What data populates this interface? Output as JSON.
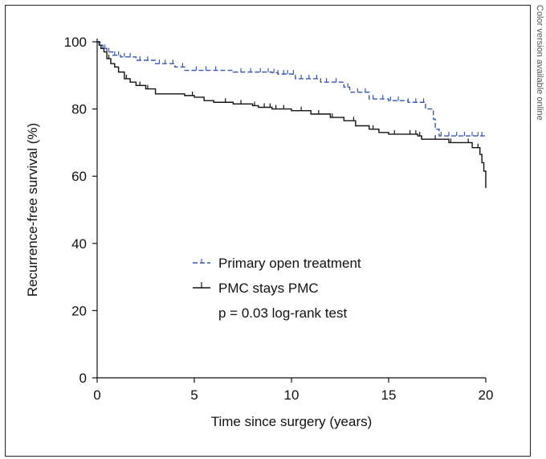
{
  "side_note": "Color version available online",
  "chart_data": {
    "type": "line",
    "title": "",
    "xlabel": "Time since surgery (years)",
    "ylabel": "Recurrence-free survival (%)",
    "xlim": [
      0,
      20
    ],
    "ylim": [
      0,
      100
    ],
    "xticks": [
      0,
      5,
      10,
      15,
      20
    ],
    "yticks": [
      0,
      20,
      40,
      60,
      80,
      100
    ],
    "grid": false,
    "legend_position": "center",
    "annotation": "p = 0.03 log-rank test",
    "series": [
      {
        "name": "Primary open treatment",
        "color": "#3a57b0",
        "dash": true,
        "points": [
          [
            0,
            100
          ],
          [
            0.15,
            99
          ],
          [
            0.3,
            98
          ],
          [
            0.5,
            97
          ],
          [
            0.8,
            96
          ],
          [
            1.2,
            95.5
          ],
          [
            2,
            94.5
          ],
          [
            3,
            93.5
          ],
          [
            4,
            92.5
          ],
          [
            4.5,
            91.5
          ],
          [
            7,
            91
          ],
          [
            9,
            90.8
          ],
          [
            9.3,
            90.4
          ],
          [
            10.2,
            89
          ],
          [
            11.5,
            88
          ],
          [
            12.7,
            86.5
          ],
          [
            13,
            85
          ],
          [
            14,
            83
          ],
          [
            15,
            82.5
          ],
          [
            16,
            82
          ],
          [
            16.9,
            80
          ],
          [
            17.3,
            77
          ],
          [
            17.4,
            74
          ],
          [
            17.6,
            72
          ],
          [
            20,
            72
          ]
        ],
        "censor_x": [
          0.4,
          0.6,
          0.9,
          1.1,
          1.4,
          1.7,
          2.2,
          2.6,
          3.2,
          3.5,
          3.9,
          4.4,
          5.1,
          5.6,
          6.1,
          7.4,
          7.9,
          8.4,
          8.8,
          9.1,
          9.3,
          9.6,
          9.8,
          10.1,
          10.5,
          10.9,
          11.3,
          11.8,
          12.3,
          12.9,
          13.4,
          13.8,
          14.2,
          14.7,
          15.1,
          15.5,
          16.0,
          16.4,
          16.8,
          17.7,
          18.1,
          18.5,
          18.9,
          19.3,
          19.6,
          19.8
        ]
      },
      {
        "name": "PMC stays PMC",
        "color": "#111111",
        "dash": false,
        "points": [
          [
            0,
            100
          ],
          [
            0.1,
            99
          ],
          [
            0.2,
            98
          ],
          [
            0.35,
            97
          ],
          [
            0.5,
            95
          ],
          [
            0.7,
            93.5
          ],
          [
            0.9,
            92.5
          ],
          [
            1.1,
            91
          ],
          [
            1.4,
            89
          ],
          [
            1.7,
            88
          ],
          [
            2,
            87
          ],
          [
            2.5,
            86
          ],
          [
            3,
            84.5
          ],
          [
            4.5,
            84
          ],
          [
            5,
            83.5
          ],
          [
            5.5,
            82.5
          ],
          [
            6,
            82
          ],
          [
            7,
            81.5
          ],
          [
            8,
            81
          ],
          [
            8.3,
            80.5
          ],
          [
            9,
            80
          ],
          [
            10,
            79.5
          ],
          [
            11,
            78.5
          ],
          [
            12,
            77.5
          ],
          [
            12.7,
            76.5
          ],
          [
            13.3,
            75
          ],
          [
            14,
            74
          ],
          [
            14.5,
            73
          ],
          [
            15,
            72.5
          ],
          [
            16.5,
            72
          ],
          [
            16.7,
            71
          ],
          [
            18,
            71
          ],
          [
            18.1,
            70
          ],
          [
            19,
            70
          ],
          [
            19.3,
            68.5
          ],
          [
            19.7,
            66.5
          ],
          [
            19.8,
            64
          ],
          [
            19.9,
            61.5
          ],
          [
            20,
            56.5
          ]
        ],
        "censor_x": [
          0.6,
          1.5,
          2.2,
          2.6,
          4.9,
          6.6,
          7.4,
          8.1,
          8.6,
          8.9,
          9.2,
          9.6,
          10.5,
          11.4,
          12.1,
          13.2,
          14.2,
          15.3,
          16.1,
          16.4,
          16.6,
          17.4,
          18.2,
          19.1,
          19.6
        ]
      }
    ]
  }
}
